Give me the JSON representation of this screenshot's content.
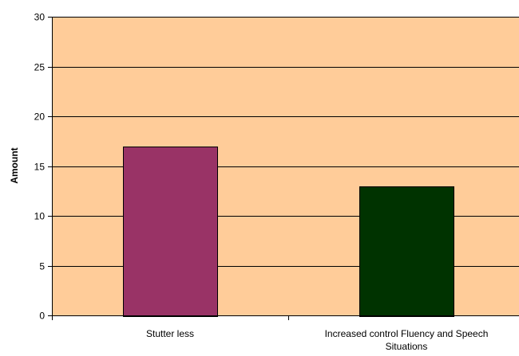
{
  "chart_data": {
    "type": "bar",
    "title": "",
    "xlabel": "",
    "ylabel": "Amount",
    "ylim": [
      0,
      30
    ],
    "yticks": [
      0,
      5,
      10,
      15,
      20,
      25,
      30
    ],
    "grid": true,
    "legend": "none",
    "categories": [
      [
        "Stutter less"
      ],
      [
        "Increased control Fluency and Speech",
        "Situations"
      ]
    ],
    "values": [
      17,
      13
    ],
    "bar_colors": [
      "#993366",
      "#003300"
    ],
    "plot_background": "#FFCC99",
    "gridline_color": "#000000"
  }
}
